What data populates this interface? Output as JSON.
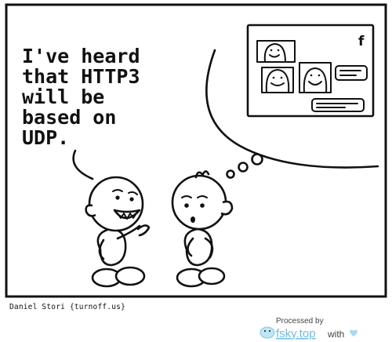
{
  "speech_lines": [
    "I've heard",
    "that HTTP3",
    "will be",
    "based on",
    "UDP."
  ],
  "author_credit": "Daniel Stori {turnoff.us}",
  "watermark": {
    "processed_by": "Processed by",
    "brand": "fsky.top",
    "with": "with",
    "heart_icon": "heart-icon",
    "brand_color": "#6dbde8"
  },
  "thought_window": {
    "logo_letter": "f",
    "logo_name": "facebook-logo-icon"
  }
}
